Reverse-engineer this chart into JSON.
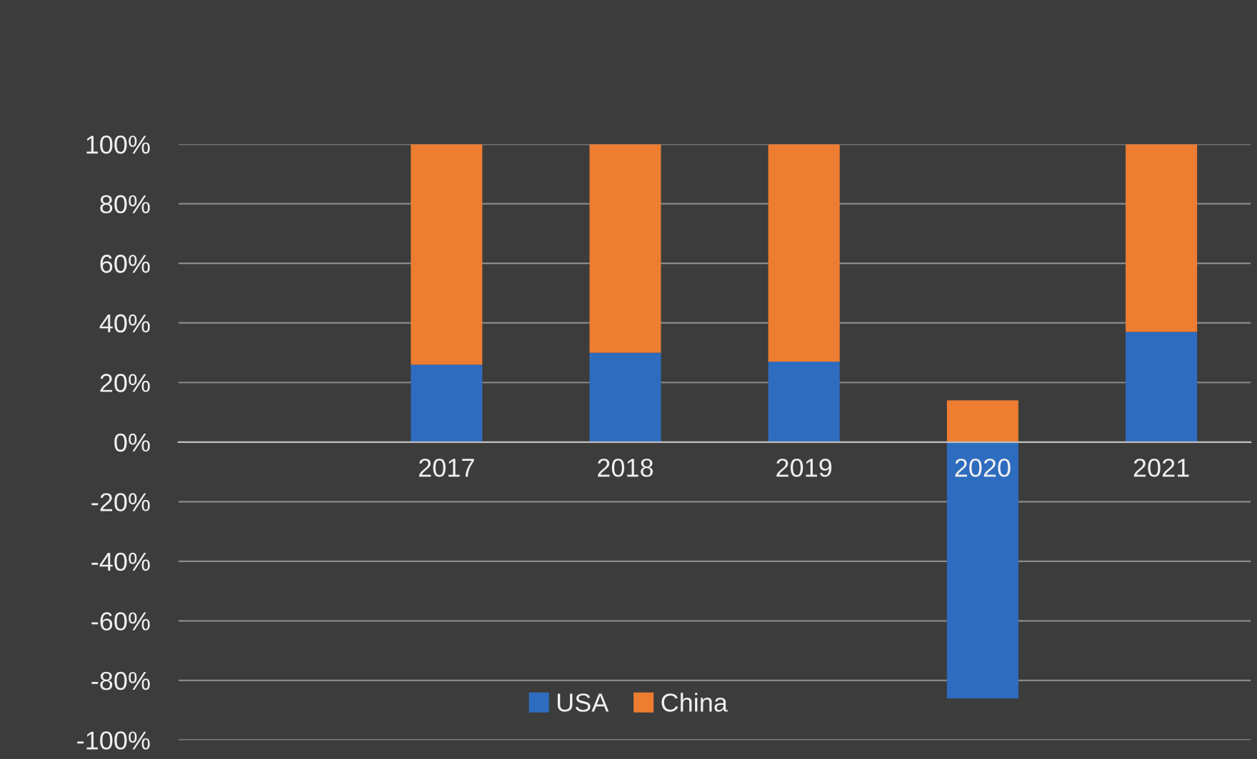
{
  "chart_data": {
    "type": "bar",
    "stacked": true,
    "categories": [
      null,
      "2017",
      "2018",
      "2019",
      "2020",
      "2021"
    ],
    "series": [
      {
        "name": "USA",
        "color": "#2e6cbf",
        "values": [
          null,
          26,
          30,
          27,
          -86,
          37
        ]
      },
      {
        "name": "China",
        "color": "#ed7d31",
        "values": [
          null,
          74,
          70,
          73,
          14,
          63
        ]
      }
    ],
    "ylim": [
      -100,
      100
    ],
    "yticks": [
      {
        "value": -100,
        "label": "-100%"
      },
      {
        "value": -80,
        "label": "-80%"
      },
      {
        "value": -60,
        "label": "-60%"
      },
      {
        "value": -40,
        "label": "-40%"
      },
      {
        "value": -20,
        "label": "-20%"
      },
      {
        "value": 0,
        "label": "0%"
      },
      {
        "value": 20,
        "label": "20%"
      },
      {
        "value": 40,
        "label": "40%"
      },
      {
        "value": 60,
        "label": "60%"
      },
      {
        "value": 80,
        "label": "80%"
      },
      {
        "value": 100,
        "label": "100%"
      }
    ],
    "grid": "y",
    "legend": "bottom"
  }
}
